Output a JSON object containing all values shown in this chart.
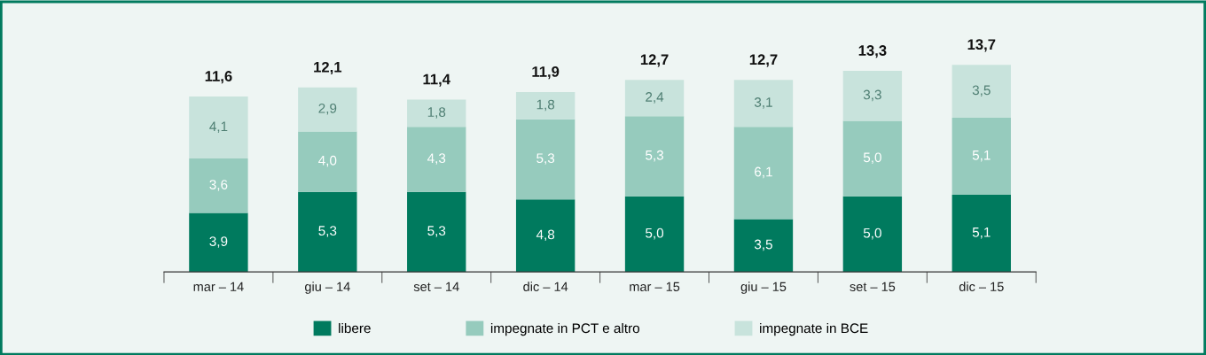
{
  "chart_data": {
    "type": "bar",
    "stacked": true,
    "categories": [
      "mar – 14",
      "giu – 14",
      "set – 14",
      "dic – 14",
      "mar – 15",
      "giu – 15",
      "set – 15",
      "dic – 15"
    ],
    "series": [
      {
        "name": "libere",
        "color": "#007a5e",
        "values": [
          3.9,
          5.3,
          5.3,
          4.8,
          5.0,
          3.5,
          5.0,
          5.1
        ],
        "value_labels": [
          "3,9",
          "5,3",
          "5,3",
          "4,8",
          "5,0",
          "3,5",
          "5,0",
          "5,1"
        ]
      },
      {
        "name": "impegnate in PCT e altro",
        "color": "#96cbbd",
        "values": [
          3.6,
          4.0,
          4.3,
          5.3,
          5.3,
          6.1,
          5.0,
          5.1
        ],
        "value_labels": [
          "3,6",
          "4,0",
          "4,3",
          "5,3",
          "5,3",
          "6,1",
          "5,0",
          "5,1"
        ]
      },
      {
        "name": "impegnate in BCE",
        "color": "#c8e3dc",
        "values": [
          4.1,
          2.9,
          1.8,
          1.8,
          2.4,
          3.1,
          3.3,
          3.5
        ],
        "value_labels": [
          "4,1",
          "2,9",
          "1,8",
          "1,8",
          "2,4",
          "3,1",
          "3,3",
          "3,5"
        ]
      }
    ],
    "totals": [
      "11,6",
      "12,1",
      "11,4",
      "11,9",
      "12,7",
      "12,7",
      "13,3",
      "13,7"
    ],
    "legend": "bottom",
    "grid": false
  }
}
